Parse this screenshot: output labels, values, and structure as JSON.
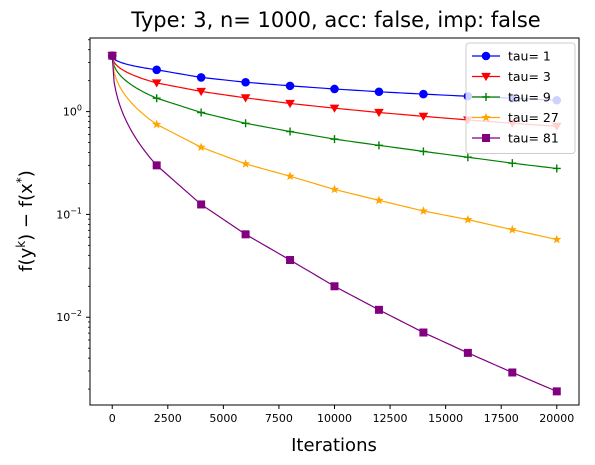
{
  "chart_data": {
    "type": "line",
    "title": "Type: 3, n= 1000, acc: false, imp: false",
    "xlabel": "Iterations",
    "ylabel_parts": [
      "f(y",
      "k",
      ") − f(x",
      "*",
      ")"
    ],
    "xscale": "linear",
    "yscale": "log",
    "xlim": [
      -1000,
      21000
    ],
    "ylim": [
      0.0014,
      5.2
    ],
    "xticks": [
      0,
      2500,
      5000,
      7500,
      10000,
      12500,
      15000,
      17500,
      20000
    ],
    "xtick_labels": [
      "0",
      "2500",
      "5000",
      "7500",
      "10000",
      "12500",
      "15000",
      "17500",
      "20000"
    ],
    "yticks_major": [
      {
        "value": 0.01,
        "base": "10",
        "exp": "−2"
      },
      {
        "value": 0.1,
        "base": "10",
        "exp": "−1"
      },
      {
        "value": 1,
        "base": "10",
        "exp": "0"
      }
    ],
    "grid": false,
    "legend_position": "top-right",
    "series": [
      {
        "name": "tau= 1",
        "color": "#0000ff",
        "marker": "circle",
        "x": [
          0,
          2000,
          4000,
          6000,
          8000,
          10000,
          12000,
          14000,
          16000,
          18000,
          20000
        ],
        "y": [
          3.5,
          2.55,
          2.15,
          1.93,
          1.78,
          1.66,
          1.56,
          1.48,
          1.41,
          1.35,
          1.29
        ]
      },
      {
        "name": "tau= 3",
        "color": "#ff0000",
        "marker": "triangle-down",
        "x": [
          0,
          2000,
          4000,
          6000,
          8000,
          10000,
          12000,
          14000,
          16000,
          18000,
          20000
        ],
        "y": [
          3.5,
          1.9,
          1.57,
          1.36,
          1.2,
          1.08,
          0.98,
          0.9,
          0.83,
          0.77,
          0.72
        ]
      },
      {
        "name": "tau= 9",
        "color": "#008000",
        "marker": "plus",
        "x": [
          0,
          2000,
          4000,
          6000,
          8000,
          10000,
          12000,
          14000,
          16000,
          18000,
          20000
        ],
        "y": [
          3.5,
          1.35,
          0.98,
          0.77,
          0.64,
          0.54,
          0.47,
          0.41,
          0.36,
          0.315,
          0.28
        ]
      },
      {
        "name": "tau= 27",
        "color": "#ffa500",
        "marker": "star",
        "x": [
          0,
          2000,
          4000,
          6000,
          8000,
          10000,
          12000,
          14000,
          16000,
          18000,
          20000
        ],
        "y": [
          3.5,
          0.75,
          0.45,
          0.31,
          0.235,
          0.175,
          0.137,
          0.108,
          0.089,
          0.071,
          0.057
        ]
      },
      {
        "name": "tau= 81",
        "color": "#800080",
        "marker": "square",
        "x": [
          0,
          2000,
          4000,
          6000,
          8000,
          10000,
          12000,
          14000,
          16000,
          18000,
          20000
        ],
        "y": [
          3.5,
          0.3,
          0.125,
          0.064,
          0.036,
          0.02,
          0.0118,
          0.0071,
          0.0045,
          0.0029,
          0.0019
        ]
      }
    ]
  }
}
